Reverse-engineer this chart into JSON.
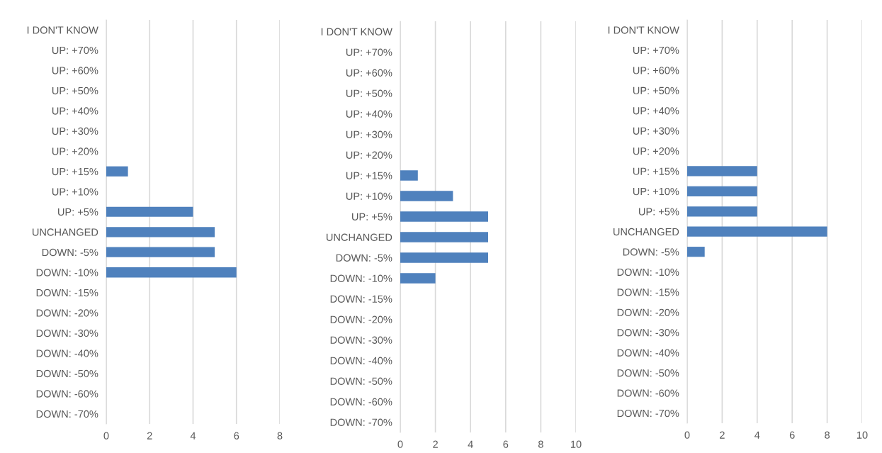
{
  "chart_data": [
    {
      "type": "bar",
      "orientation": "horizontal",
      "categories": [
        "I DON'T KNOW",
        "UP: +70%",
        "UP: +60%",
        "UP: +50%",
        "UP: +40%",
        "UP: +30%",
        "UP: +20%",
        "UP: +15%",
        "UP: +10%",
        "UP: +5%",
        "UNCHANGED",
        "DOWN: -5%",
        "DOWN: -10%",
        "DOWN: -15%",
        "DOWN: -20%",
        "DOWN: -30%",
        "DOWN: -40%",
        "DOWN: -50%",
        "DOWN: -60%",
        "DOWN: -70%"
      ],
      "values": [
        0,
        0,
        0,
        0,
        0,
        0,
        0,
        1,
        0,
        4,
        5,
        5,
        6,
        0,
        0,
        0,
        0,
        0,
        0,
        0
      ],
      "color": "#4f81bd",
      "xlim": [
        0,
        8
      ],
      "xticks": [
        0,
        2,
        4,
        6,
        8
      ],
      "grid": "x"
    },
    {
      "type": "bar",
      "orientation": "horizontal",
      "categories": [
        "I DON'T KNOW",
        "UP: +70%",
        "UP: +60%",
        "UP: +50%",
        "UP: +40%",
        "UP: +30%",
        "UP: +20%",
        "UP: +15%",
        "UP: +10%",
        "UP: +5%",
        "UNCHANGED",
        "DOWN: -5%",
        "DOWN: -10%",
        "DOWN: -15%",
        "DOWN: -20%",
        "DOWN: -30%",
        "DOWN: -40%",
        "DOWN: -50%",
        "DOWN: -60%",
        "DOWN: -70%"
      ],
      "values": [
        0,
        0,
        0,
        0,
        0,
        0,
        0,
        1,
        3,
        5,
        5,
        5,
        2,
        0,
        0,
        0,
        0,
        0,
        0,
        0
      ],
      "color": "#4f81bd",
      "xlim": [
        0,
        10
      ],
      "xticks": [
        0,
        2,
        4,
        6,
        8,
        10
      ],
      "grid": "x"
    },
    {
      "type": "bar",
      "orientation": "horizontal",
      "categories": [
        "I DON'T KNOW",
        "UP: +70%",
        "UP: +60%",
        "UP: +50%",
        "UP: +40%",
        "UP: +30%",
        "UP: +20%",
        "UP: +15%",
        "UP: +10%",
        "UP: +5%",
        "UNCHANGED",
        "DOWN: -5%",
        "DOWN: -10%",
        "DOWN: -15%",
        "DOWN: -20%",
        "DOWN: -30%",
        "DOWN: -40%",
        "DOWN: -50%",
        "DOWN: -60%",
        "DOWN: -70%"
      ],
      "values": [
        0,
        0,
        0,
        0,
        0,
        0,
        0,
        4,
        4,
        4,
        8,
        1,
        0,
        0,
        0,
        0,
        0,
        0,
        0,
        0
      ],
      "color": "#4f81bd",
      "xlim": [
        0,
        10
      ],
      "xticks": [
        0,
        2,
        4,
        6,
        8,
        10
      ],
      "grid": "x"
    }
  ]
}
